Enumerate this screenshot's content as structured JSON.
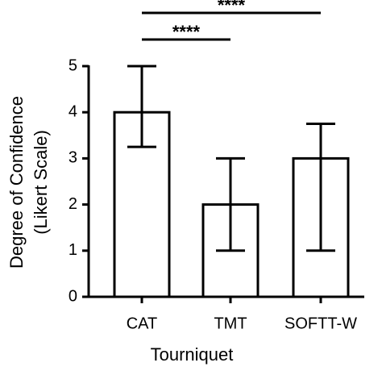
{
  "chart_data": {
    "type": "bar",
    "categories": [
      "CAT",
      "TMT",
      "SOFTT-W"
    ],
    "values": [
      4,
      2,
      3
    ],
    "lower": [
      3.25,
      1,
      1
    ],
    "upper": [
      5,
      3,
      3.75
    ],
    "color": "#ffffff",
    "edge_color": "#000000",
    "xlabel": "Tourniquet",
    "ylabel": [
      "Degree of Confidence",
      "(Likert  Scale)"
    ],
    "ylim": [
      0,
      5.5
    ],
    "yticks": [
      0,
      1,
      2,
      3,
      4,
      5
    ],
    "grid": false,
    "annotations": [
      {
        "text": "****",
        "from": "CAT",
        "to": "TMT"
      },
      {
        "text": "****",
        "from": "CAT",
        "to": "SOFTT-W"
      }
    ]
  }
}
